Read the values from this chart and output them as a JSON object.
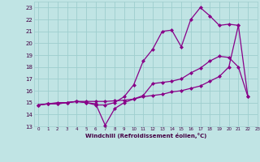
{
  "title": "",
  "xlabel": "Windchill (Refroidissement éolien,°C)",
  "ylabel": "",
  "xlim": [
    -0.5,
    23
  ],
  "ylim": [
    13,
    23.5
  ],
  "yticks": [
    13,
    14,
    15,
    16,
    17,
    18,
    19,
    20,
    21,
    22,
    23
  ],
  "xticks": [
    0,
    1,
    2,
    3,
    4,
    5,
    6,
    7,
    8,
    9,
    10,
    11,
    12,
    13,
    14,
    15,
    16,
    17,
    18,
    19,
    20,
    21,
    22,
    23
  ],
  "bg_color": "#c0e4e4",
  "grid_color": "#9ecece",
  "line_color": "#880088",
  "line_width": 0.9,
  "marker": "D",
  "marker_size": 2.0,
  "lines": [
    {
      "x": [
        0,
        1,
        2,
        3,
        4,
        5,
        6,
        7,
        8,
        9,
        10,
        11,
        12,
        13,
        14,
        15,
        16,
        17,
        18,
        19,
        20,
        21,
        22
      ],
      "y": [
        14.8,
        14.9,
        14.9,
        15.0,
        15.1,
        15.0,
        14.9,
        13.1,
        14.5,
        15.0,
        15.3,
        15.6,
        16.6,
        16.7,
        16.8,
        17.0,
        17.5,
        17.9,
        18.5,
        18.9,
        18.8,
        18.0,
        15.5
      ]
    },
    {
      "x": [
        0,
        1,
        2,
        3,
        4,
        5,
        6,
        7,
        8,
        9,
        10,
        11,
        12,
        13,
        14,
        15,
        16,
        17,
        18,
        19,
        20,
        21
      ],
      "y": [
        14.8,
        14.9,
        14.9,
        15.0,
        15.1,
        15.0,
        14.8,
        14.8,
        15.0,
        15.5,
        16.5,
        18.5,
        19.5,
        21.0,
        21.1,
        19.7,
        22.0,
        23.0,
        22.3,
        21.5,
        21.6,
        21.5
      ]
    },
    {
      "x": [
        0,
        1,
        2,
        3,
        4,
        5,
        6,
        7,
        8,
        9,
        10,
        11,
        12,
        13,
        14,
        15,
        16,
        17,
        18,
        19,
        20,
        21,
        22
      ],
      "y": [
        14.8,
        14.9,
        15.0,
        15.0,
        15.1,
        15.1,
        15.1,
        15.1,
        15.15,
        15.2,
        15.3,
        15.5,
        15.6,
        15.7,
        15.9,
        16.0,
        16.2,
        16.4,
        16.8,
        17.2,
        18.0,
        21.5,
        15.5
      ]
    }
  ]
}
